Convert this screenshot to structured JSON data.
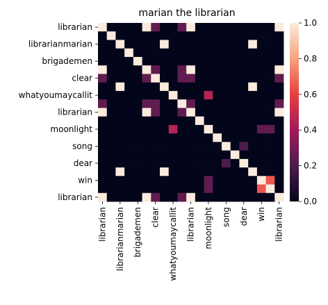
{
  "chart_data": {
    "type": "heatmap",
    "title": "marian the librarian",
    "xlabel": "",
    "ylabel": "",
    "row_labels": [
      "librarian",
      "",
      "librarianmarian",
      "",
      "brigademen",
      "",
      "clear",
      "",
      "whatyoumaycallit",
      "",
      "librarian",
      "",
      "moonlight",
      "",
      "song",
      "",
      "dear",
      "",
      "win",
      "",
      "librarian"
    ],
    "col_labels": [
      "librarian",
      "",
      "librarianmarian",
      "",
      "brigademen",
      "",
      "clear",
      "",
      "whatyoumaycallit",
      "",
      "librarian",
      "",
      "moonlight",
      "",
      "song",
      "",
      "dear",
      "",
      "win",
      "",
      "librarian"
    ],
    "values": [
      [
        1,
        0,
        0,
        0,
        0,
        1,
        0.25,
        0,
        0,
        0.25,
        1,
        0,
        0,
        0,
        0,
        0,
        0,
        0,
        0,
        0,
        1
      ],
      [
        0,
        1,
        0,
        0,
        0,
        0,
        0,
        0,
        0,
        0,
        0,
        0,
        0,
        0,
        0,
        0,
        0,
        0,
        0,
        0,
        0
      ],
      [
        0,
        0,
        1,
        0,
        0,
        0,
        0,
        1,
        0,
        0,
        0,
        0,
        0,
        0,
        0,
        0,
        0,
        1,
        0,
        0,
        0
      ],
      [
        0,
        0,
        0,
        1,
        0,
        0,
        0,
        0,
        0,
        0,
        0,
        0,
        0,
        0,
        0,
        0,
        0,
        0,
        0,
        0,
        0
      ],
      [
        0,
        0,
        0,
        0,
        1,
        0,
        0,
        0,
        0,
        0,
        0,
        0,
        0,
        0,
        0,
        0,
        0,
        0,
        0,
        0,
        0
      ],
      [
        1,
        0,
        0,
        0,
        0,
        1,
        0.25,
        0,
        0,
        0.25,
        1,
        0,
        0,
        0,
        0,
        0,
        0,
        0,
        0,
        0,
        1
      ],
      [
        0.25,
        0,
        0,
        0,
        0,
        0.25,
        1,
        0,
        0,
        0.25,
        0.25,
        0,
        0,
        0,
        0,
        0,
        0,
        0,
        0,
        0,
        0.25
      ],
      [
        0,
        0,
        1,
        0,
        0,
        0,
        0,
        1,
        0,
        0,
        0,
        0,
        0,
        0,
        0,
        0,
        0,
        1,
        0,
        0,
        0
      ],
      [
        0,
        0,
        0,
        0,
        0,
        0,
        0,
        0,
        1,
        0,
        0,
        0,
        0.45,
        0,
        0,
        0,
        0,
        0,
        0,
        0,
        0
      ],
      [
        0.25,
        0,
        0,
        0,
        0,
        0.25,
        0.25,
        0,
        0,
        1,
        0.25,
        0,
        0,
        0,
        0,
        0,
        0,
        0,
        0,
        0,
        0.25
      ],
      [
        1,
        0,
        0,
        0,
        0,
        1,
        0.25,
        0,
        0,
        0.25,
        1,
        0,
        0,
        0,
        0,
        0,
        0,
        0,
        0,
        0,
        1
      ],
      [
        0,
        0,
        0,
        0,
        0,
        0,
        0,
        0,
        0,
        0,
        0,
        1,
        0,
        0,
        0,
        0,
        0,
        0,
        0,
        0,
        0
      ],
      [
        0,
        0,
        0,
        0,
        0,
        0,
        0,
        0,
        0.45,
        0,
        0,
        0,
        1,
        0,
        0,
        0,
        0,
        0,
        0.25,
        0.25,
        0
      ],
      [
        0,
        0,
        0,
        0,
        0,
        0,
        0,
        0,
        0,
        0,
        0,
        0,
        0,
        1,
        0,
        0,
        0,
        0,
        0,
        0,
        0
      ],
      [
        0,
        0,
        0,
        0,
        0,
        0,
        0,
        0,
        0,
        0,
        0,
        0,
        0,
        0,
        1,
        0,
        0.2,
        0,
        0,
        0,
        0
      ],
      [
        0,
        0,
        0,
        0,
        0,
        0,
        0,
        0,
        0,
        0,
        0,
        0,
        0,
        0,
        0,
        1,
        0,
        0,
        0,
        0,
        0
      ],
      [
        0,
        0,
        0,
        0,
        0,
        0,
        0,
        0,
        0,
        0,
        0,
        0,
        0,
        0,
        0.2,
        0,
        1,
        0,
        0,
        0,
        0
      ],
      [
        0,
        0,
        1,
        0,
        0,
        0,
        0,
        1,
        0,
        0,
        0,
        0,
        0,
        0,
        0,
        0,
        0,
        1,
        0,
        0,
        0
      ],
      [
        0,
        0,
        0,
        0,
        0,
        0,
        0,
        0,
        0,
        0,
        0,
        0,
        0.25,
        0,
        0,
        0,
        0,
        0,
        1,
        0.65,
        0
      ],
      [
        0,
        0,
        0,
        0,
        0,
        0,
        0,
        0,
        0,
        0,
        0,
        0,
        0.25,
        0,
        0,
        0,
        0,
        0,
        0.65,
        1,
        0
      ],
      [
        1,
        0,
        0,
        0,
        0,
        1,
        0.25,
        0,
        0,
        0.25,
        1,
        0,
        0,
        0,
        0,
        0,
        0,
        0,
        0,
        0,
        1
      ]
    ],
    "vmin": 0,
    "vmax": 1,
    "colorbar_ticks": [
      0.0,
      0.2,
      0.4,
      0.6,
      0.8,
      1.0
    ],
    "colormap": "rocket",
    "colormap_stops": [
      "#03051a",
      "#4c1d4b",
      "#a11a5b",
      "#e83f3f",
      "#f6a47c",
      "#faebdd"
    ],
    "grid": false,
    "legend": "colorbar-right"
  }
}
